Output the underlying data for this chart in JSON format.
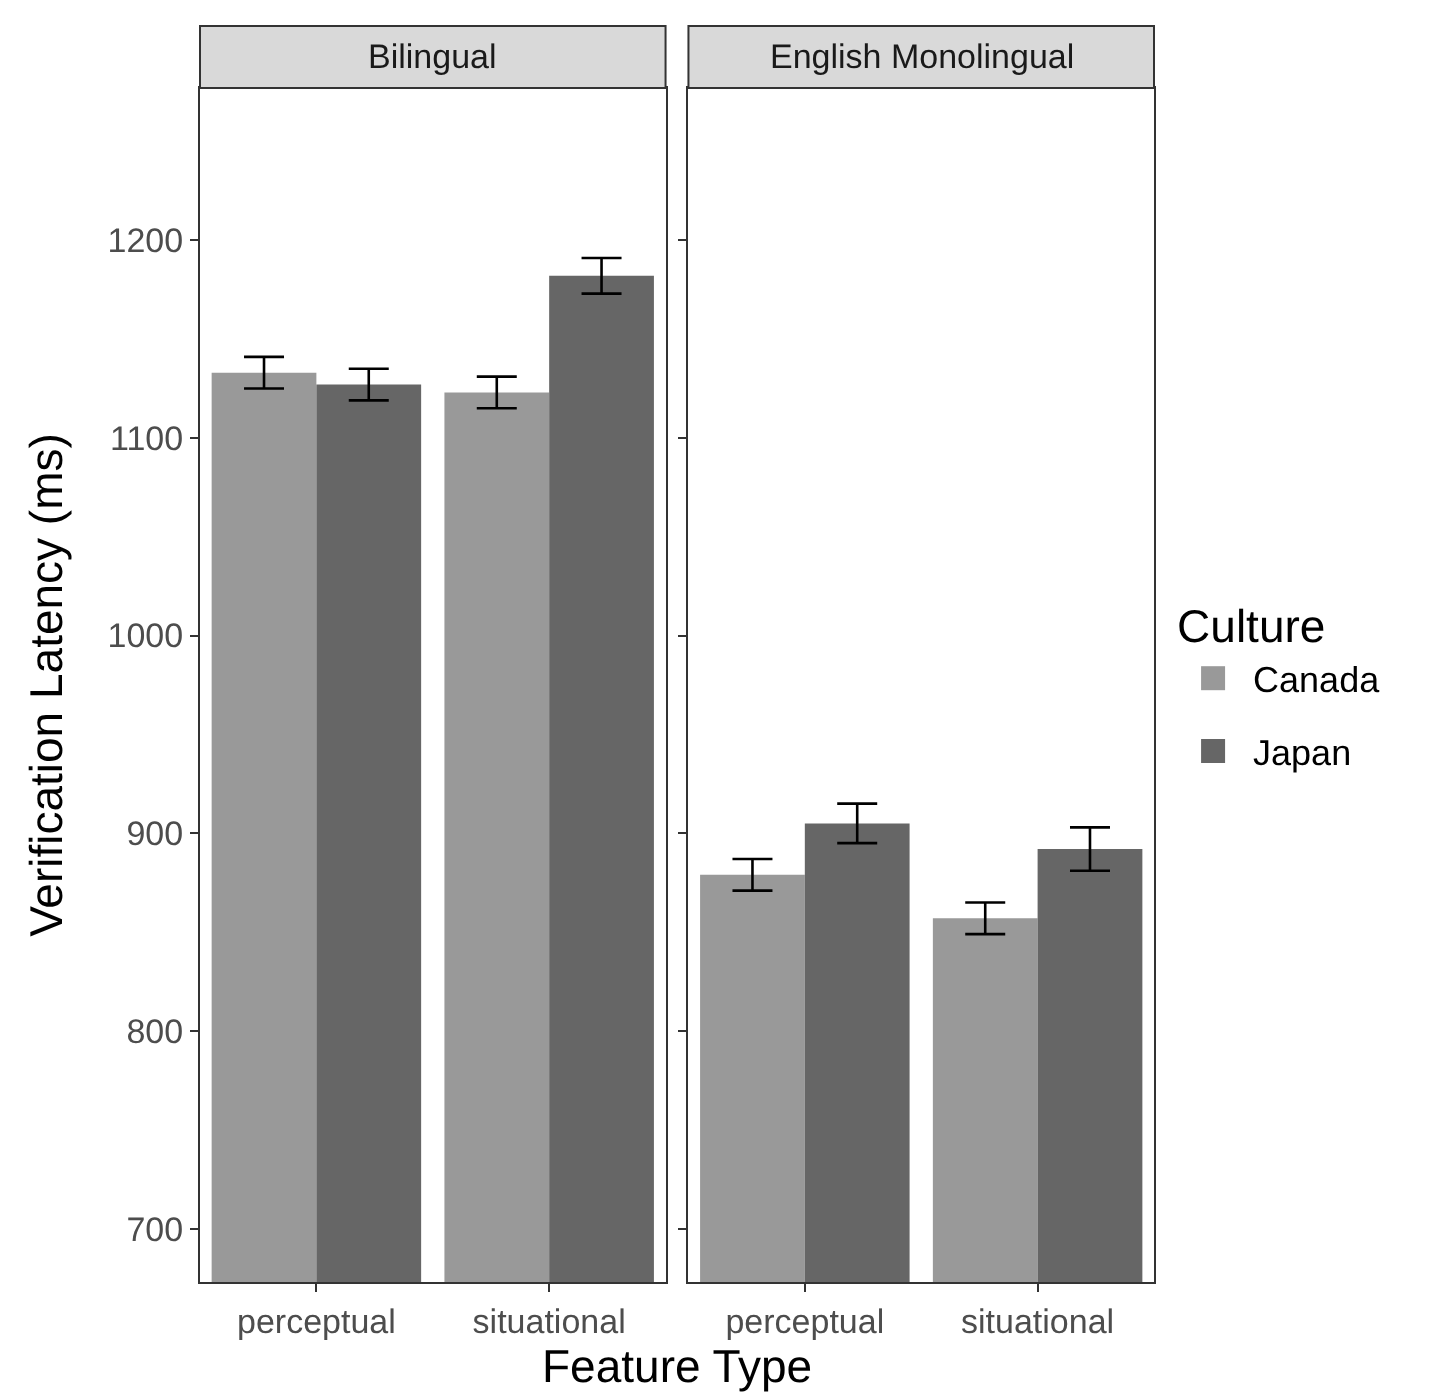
{
  "chart_data": [
    {
      "type": "bar",
      "title": "Bilingual",
      "xlabel": "Feature Type",
      "ylabel": "Verification Latency (ms)",
      "legend_title": "Culture",
      "legend": "right",
      "categories": [
        "perceptual",
        "situational"
      ],
      "series": [
        {
          "name": "Canada",
          "color": "#999999",
          "values": [
            1133,
            1123
          ],
          "errors": [
            8,
            8
          ]
        },
        {
          "name": "Japan",
          "color": "#666666",
          "values": [
            1127,
            1182
          ],
          "errors": [
            8,
            9
          ]
        }
      ],
      "ylim": [
        673,
        1277
      ],
      "yticks": [
        700,
        800,
        900,
        1000,
        1100,
        1200
      ]
    },
    {
      "type": "bar",
      "title": "English Monolingual",
      "tick_labels": "x",
      "categories": [
        "perceptual",
        "situational"
      ],
      "series": [
        {
          "name": "Canada",
          "color": "#999999",
          "values": [
            879,
            857
          ],
          "errors": [
            8,
            8
          ]
        },
        {
          "name": "Japan",
          "color": "#666666",
          "values": [
            905,
            892
          ],
          "errors": [
            10,
            11
          ]
        }
      ],
      "ylim": [
        673,
        1277
      ],
      "yticks": [
        700,
        800,
        900,
        1000,
        1100,
        1200
      ]
    }
  ]
}
